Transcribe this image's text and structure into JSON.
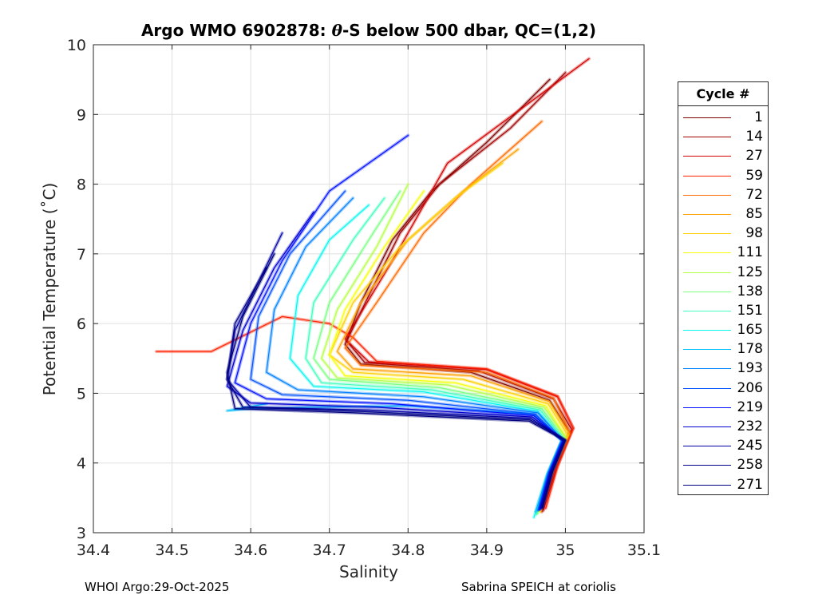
{
  "chart_data": {
    "type": "line",
    "title_prefix": "Argo WMO 6902878: ",
    "title_symbol": "θ",
    "title_suffix": "-S below 500 dbar,  QC=(1,2)",
    "xlabel": "Salinity",
    "ylabel": "Potential Temperature (˚C)",
    "xlim": [
      34.4,
      35.1
    ],
    "ylim": [
      3,
      10
    ],
    "xticks": [
      34.4,
      34.5,
      34.6,
      34.7,
      34.8,
      34.9,
      35,
      35.1
    ],
    "xtick_labels": [
      "34.4",
      "34.5",
      "34.6",
      "34.7",
      "34.8",
      "34.9",
      "35",
      "35.1"
    ],
    "yticks": [
      3,
      4,
      5,
      6,
      7,
      8,
      9,
      10
    ],
    "ytick_labels": [
      "3",
      "4",
      "5",
      "6",
      "7",
      "8",
      "9",
      "10"
    ],
    "grid": true,
    "legend_position": "outside right",
    "legend_title": "Cycle #",
    "legend": [
      {
        "cycle": "1",
        "color": "#7f0000"
      },
      {
        "cycle": "14",
        "color": "#a00000"
      },
      {
        "cycle": "27",
        "color": "#d10000"
      },
      {
        "cycle": "59",
        "color": "#ff2000"
      },
      {
        "cycle": "72",
        "color": "#ff6a00"
      },
      {
        "cycle": "85",
        "color": "#ffa000"
      },
      {
        "cycle": "98",
        "color": "#ffd000"
      },
      {
        "cycle": "111",
        "color": "#f6ff09"
      },
      {
        "cycle": "125",
        "color": "#b6ff49"
      },
      {
        "cycle": "138",
        "color": "#7cff83"
      },
      {
        "cycle": "151",
        "color": "#42ffbd"
      },
      {
        "cycle": "165",
        "color": "#08f6ef"
      },
      {
        "cycle": "178",
        "color": "#00c0ff"
      },
      {
        "cycle": "193",
        "color": "#0080ff"
      },
      {
        "cycle": "206",
        "color": "#0050ff"
      },
      {
        "cycle": "219",
        "color": "#0010ff"
      },
      {
        "cycle": "232",
        "color": "#0000d0"
      },
      {
        "cycle": "245",
        "color": "#0000a8"
      },
      {
        "cycle": "258",
        "color": "#00008a"
      },
      {
        "cycle": "271",
        "color": "#000080"
      }
    ],
    "series": [
      {
        "name": "1",
        "color": "#7f0000",
        "points": [
          [
            34.97,
            3.35
          ],
          [
            34.985,
            3.9
          ],
          [
            35.005,
            4.45
          ],
          [
            34.98,
            4.9
          ],
          [
            34.88,
            5.3
          ],
          [
            34.74,
            5.42
          ],
          [
            34.72,
            5.7
          ],
          [
            34.74,
            6.3
          ],
          [
            34.78,
            7.2
          ],
          [
            34.83,
            7.9
          ],
          [
            34.9,
            8.6
          ],
          [
            34.98,
            9.5
          ]
        ]
      },
      {
        "name": "14",
        "color": "#a00000",
        "points": [
          [
            34.972,
            3.32
          ],
          [
            34.988,
            3.9
          ],
          [
            35.008,
            4.48
          ],
          [
            34.985,
            4.92
          ],
          [
            34.89,
            5.32
          ],
          [
            34.745,
            5.44
          ],
          [
            34.722,
            5.75
          ],
          [
            34.75,
            6.4
          ],
          [
            34.79,
            7.3
          ],
          [
            34.84,
            8.0
          ],
          [
            34.93,
            8.8
          ],
          [
            35.0,
            9.6
          ]
        ]
      },
      {
        "name": "27",
        "color": "#d10000",
        "points": [
          [
            34.97,
            3.3
          ],
          [
            34.987,
            3.92
          ],
          [
            35.01,
            4.5
          ],
          [
            34.99,
            4.95
          ],
          [
            34.9,
            5.34
          ],
          [
            34.75,
            5.45
          ],
          [
            34.72,
            5.78
          ],
          [
            34.78,
            6.9
          ],
          [
            34.85,
            8.3
          ],
          [
            34.97,
            9.3
          ],
          [
            35.03,
            9.8
          ]
        ]
      },
      {
        "name": "59",
        "color": "#ff2000",
        "points": [
          [
            34.975,
            3.35
          ],
          [
            34.99,
            3.95
          ],
          [
            35.01,
            4.5
          ],
          [
            34.99,
            4.96
          ],
          [
            34.9,
            5.35
          ],
          [
            34.76,
            5.46
          ],
          [
            34.73,
            5.8
          ],
          [
            34.7,
            6.0
          ],
          [
            34.64,
            6.1
          ],
          [
            34.55,
            5.6
          ],
          [
            34.48,
            5.6
          ]
        ]
      },
      {
        "name": "72",
        "color": "#ff6a00",
        "points": [
          [
            34.97,
            3.35
          ],
          [
            34.985,
            3.9
          ],
          [
            35.005,
            4.45
          ],
          [
            34.985,
            4.93
          ],
          [
            34.9,
            5.3
          ],
          [
            34.74,
            5.4
          ],
          [
            34.72,
            5.65
          ],
          [
            34.76,
            6.3
          ],
          [
            34.82,
            7.3
          ],
          [
            34.88,
            8.0
          ],
          [
            34.97,
            8.9
          ]
        ]
      },
      {
        "name": "85",
        "color": "#ffa000",
        "points": [
          [
            34.968,
            3.32
          ],
          [
            34.984,
            3.9
          ],
          [
            35.005,
            4.42
          ],
          [
            34.98,
            4.88
          ],
          [
            34.88,
            5.25
          ],
          [
            34.73,
            5.35
          ],
          [
            34.71,
            5.6
          ],
          [
            34.74,
            6.3
          ],
          [
            34.8,
            7.2
          ],
          [
            34.87,
            7.9
          ],
          [
            34.94,
            8.5
          ]
        ]
      },
      {
        "name": "98",
        "color": "#ffd000",
        "points": [
          [
            34.968,
            3.3
          ],
          [
            34.983,
            3.88
          ],
          [
            35.003,
            4.4
          ],
          [
            34.978,
            4.85
          ],
          [
            34.87,
            5.2
          ],
          [
            34.73,
            5.3
          ],
          [
            34.7,
            5.55
          ],
          [
            34.73,
            6.3
          ],
          [
            34.79,
            7.1
          ],
          [
            34.86,
            7.8
          ],
          [
            34.92,
            8.3
          ]
        ]
      },
      {
        "name": "111",
        "color": "#f6ff09",
        "points": [
          [
            34.966,
            3.3
          ],
          [
            34.982,
            3.88
          ],
          [
            35.0,
            4.38
          ],
          [
            34.975,
            4.82
          ],
          [
            34.86,
            5.15
          ],
          [
            34.72,
            5.25
          ],
          [
            34.7,
            5.55
          ],
          [
            34.72,
            6.2
          ],
          [
            34.77,
            7.1
          ],
          [
            34.82,
            7.9
          ]
        ]
      },
      {
        "name": "125",
        "color": "#b6ff49",
        "points": [
          [
            34.965,
            3.28
          ],
          [
            34.98,
            3.87
          ],
          [
            35.0,
            4.37
          ],
          [
            34.973,
            4.8
          ],
          [
            34.85,
            5.12
          ],
          [
            34.71,
            5.22
          ],
          [
            34.69,
            5.5
          ],
          [
            34.71,
            6.2
          ],
          [
            34.76,
            7.1
          ],
          [
            34.8,
            8.0
          ]
        ]
      },
      {
        "name": "138",
        "color": "#7cff83",
        "points": [
          [
            34.964,
            3.28
          ],
          [
            34.979,
            3.86
          ],
          [
            34.998,
            4.36
          ],
          [
            34.97,
            4.78
          ],
          [
            34.84,
            5.08
          ],
          [
            34.7,
            5.2
          ],
          [
            34.68,
            5.5
          ],
          [
            34.7,
            6.3
          ],
          [
            34.75,
            7.2
          ],
          [
            34.79,
            7.9
          ]
        ]
      },
      {
        "name": "151",
        "color": "#42ffbd",
        "points": [
          [
            34.963,
            3.26
          ],
          [
            34.978,
            3.85
          ],
          [
            34.997,
            4.35
          ],
          [
            34.968,
            4.76
          ],
          [
            34.83,
            5.05
          ],
          [
            34.69,
            5.15
          ],
          [
            34.67,
            5.5
          ],
          [
            34.68,
            6.3
          ],
          [
            34.73,
            7.2
          ],
          [
            34.77,
            7.8
          ]
        ]
      },
      {
        "name": "165",
        "color": "#08f6ef",
        "points": [
          [
            34.96,
            3.22
          ],
          [
            34.977,
            3.84
          ],
          [
            34.996,
            4.33
          ],
          [
            34.965,
            4.74
          ],
          [
            34.82,
            5.02
          ],
          [
            34.68,
            5.1
          ],
          [
            34.65,
            5.5
          ],
          [
            34.66,
            6.4
          ],
          [
            34.7,
            7.2
          ],
          [
            34.75,
            7.7
          ]
        ]
      },
      {
        "name": "178",
        "color": "#00c0ff",
        "points": [
          [
            34.962,
            3.3
          ],
          [
            34.977,
            3.84
          ],
          [
            34.995,
            4.32
          ],
          [
            34.96,
            4.7
          ],
          [
            34.8,
            4.82
          ],
          [
            34.68,
            4.8
          ],
          [
            34.6,
            4.78
          ],
          [
            34.57,
            4.75
          ],
          [
            34.62,
            4.85
          ]
        ]
      },
      {
        "name": "193",
        "color": "#0080ff",
        "points": [
          [
            34.965,
            3.32
          ],
          [
            34.978,
            3.85
          ],
          [
            34.996,
            4.34
          ],
          [
            34.965,
            4.72
          ],
          [
            34.82,
            4.95
          ],
          [
            34.66,
            5.05
          ],
          [
            34.62,
            5.3
          ],
          [
            34.63,
            6.2
          ],
          [
            34.67,
            7.1
          ],
          [
            34.73,
            7.8
          ]
        ]
      },
      {
        "name": "206",
        "color": "#0050ff",
        "points": [
          [
            34.966,
            3.33
          ],
          [
            34.979,
            3.85
          ],
          [
            34.996,
            4.32
          ],
          [
            34.962,
            4.7
          ],
          [
            34.8,
            4.9
          ],
          [
            34.64,
            4.98
          ],
          [
            34.6,
            5.2
          ],
          [
            34.61,
            6.1
          ],
          [
            34.65,
            7.0
          ],
          [
            34.72,
            7.9
          ]
        ]
      },
      {
        "name": "219",
        "color": "#0010ff",
        "points": [
          [
            34.967,
            3.33
          ],
          [
            34.98,
            3.86
          ],
          [
            34.997,
            4.32
          ],
          [
            34.96,
            4.68
          ],
          [
            34.78,
            4.85
          ],
          [
            34.62,
            4.92
          ],
          [
            34.58,
            5.15
          ],
          [
            34.6,
            6.0
          ],
          [
            34.64,
            6.9
          ],
          [
            34.7,
            7.9
          ],
          [
            34.8,
            8.7
          ]
        ]
      },
      {
        "name": "232",
        "color": "#0000d0",
        "points": [
          [
            34.968,
            3.34
          ],
          [
            34.981,
            3.87
          ],
          [
            34.998,
            4.32
          ],
          [
            34.958,
            4.66
          ],
          [
            34.76,
            4.8
          ],
          [
            34.6,
            4.86
          ],
          [
            34.57,
            5.1
          ],
          [
            34.59,
            5.9
          ],
          [
            34.63,
            6.8
          ],
          [
            34.68,
            7.6
          ]
        ]
      },
      {
        "name": "245",
        "color": "#0000a8",
        "points": [
          [
            34.97,
            3.35
          ],
          [
            34.982,
            3.88
          ],
          [
            34.999,
            4.33
          ],
          [
            34.956,
            4.64
          ],
          [
            34.75,
            4.76
          ],
          [
            34.6,
            4.8
          ],
          [
            34.57,
            5.2
          ],
          [
            34.58,
            5.9
          ],
          [
            34.61,
            6.6
          ],
          [
            34.64,
            7.3
          ]
        ]
      },
      {
        "name": "258",
        "color": "#00008a",
        "points": [
          [
            34.97,
            3.36
          ],
          [
            34.983,
            3.88
          ],
          [
            35.0,
            4.33
          ],
          [
            34.955,
            4.62
          ],
          [
            34.74,
            4.74
          ],
          [
            34.59,
            4.8
          ],
          [
            34.57,
            5.2
          ],
          [
            34.58,
            6.0
          ],
          [
            34.62,
            6.8
          ]
        ]
      },
      {
        "name": "271",
        "color": "#000080",
        "points": [
          [
            34.971,
            3.36
          ],
          [
            34.984,
            3.88
          ],
          [
            35.0,
            4.32
          ],
          [
            34.954,
            4.6
          ],
          [
            34.73,
            4.72
          ],
          [
            34.58,
            4.78
          ],
          [
            34.57,
            5.3
          ],
          [
            34.59,
            6.1
          ],
          [
            34.63,
            7.0
          ]
        ]
      }
    ]
  },
  "footer": {
    "left": "WHOI Argo:29-Oct-2025",
    "right": "Sabrina SPEICH at coriolis"
  }
}
